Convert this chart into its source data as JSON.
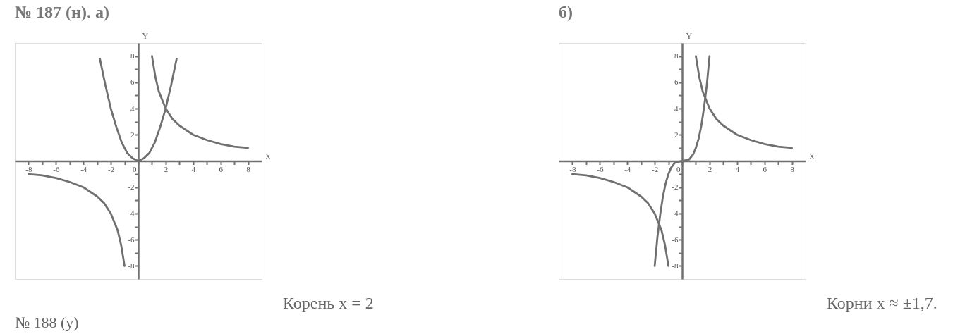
{
  "chart_data": [
    {
      "type": "line",
      "title": "№ 187 (н). а)",
      "xlabel": "X",
      "ylabel": "Y",
      "xlim": [
        -9,
        9
      ],
      "ylim": [
        -9,
        9
      ],
      "xticks": [
        -8,
        {
          "value": -7,
          "label": null
        },
        -6,
        {
          "value": -5,
          "label": null
        },
        -4,
        {
          "value": -3,
          "label": null
        },
        -2,
        {
          "value": -1,
          "label": null
        },
        0,
        {
          "value": 1,
          "label": null
        },
        2,
        {
          "value": 3,
          "label": null
        },
        4,
        {
          "value": 5,
          "label": null
        },
        6,
        {
          "value": 7,
          "label": null
        },
        8
      ],
      "yticks": [
        -8,
        {
          "value": -7,
          "label": null
        },
        -6,
        {
          "value": -5,
          "label": null
        },
        -4,
        {
          "value": -3,
          "label": null
        },
        -2,
        {
          "value": -1,
          "label": null
        },
        {
          "value": 1,
          "label": null
        },
        2,
        {
          "value": 3,
          "label": null
        },
        4,
        {
          "value": 5,
          "label": null
        },
        6,
        {
          "value": 7,
          "label": null
        },
        8
      ],
      "grid": false,
      "marker": "none",
      "line_style": "solid",
      "series": [
        {
          "color": "#707070",
          "x": [
            -2.8,
            -2.4,
            -2,
            -1.6,
            -1.2,
            -0.8,
            -0.4,
            0,
            0.4,
            0.8,
            1.2,
            1.6,
            2,
            2.4,
            2.8
          ],
          "values": [
            7.8,
            5.8,
            4,
            2.6,
            1.4,
            0.6,
            0.2,
            0,
            0.2,
            0.6,
            1.4,
            2.6,
            4,
            5.8,
            7.8
          ]
        },
        {
          "color": "#707070",
          "x": [
            1,
            1.25,
            1.5,
            2,
            2.5,
            3,
            4,
            5,
            6,
            7,
            8
          ],
          "values": [
            8,
            6.4,
            5.3,
            4,
            3.2,
            2.7,
            2,
            1.6,
            1.3,
            1.1,
            1
          ]
        },
        {
          "color": "#707070",
          "x": [
            -8,
            -7,
            -6,
            -5,
            -4,
            -3,
            -2.5,
            -2,
            -1.5,
            -1.25,
            -1
          ],
          "values": [
            -1,
            -1.1,
            -1.3,
            -1.6,
            -2,
            -2.7,
            -3.2,
            -4,
            -5.3,
            -6.4,
            -8
          ]
        }
      ],
      "annotations": [
        "Корень x = 2",
        "№ 188 (у)"
      ]
    },
    {
      "type": "line",
      "title": "б)",
      "xlabel": "X",
      "ylabel": "Y",
      "xlim": [
        -9,
        9
      ],
      "ylim": [
        -9,
        9
      ],
      "xticks": [
        -8,
        {
          "value": -7,
          "label": null
        },
        -6,
        {
          "value": -5,
          "label": null
        },
        -4,
        {
          "value": -3,
          "label": null
        },
        -2,
        {
          "value": -1,
          "label": null
        },
        0,
        {
          "value": 1,
          "label": null
        },
        2,
        {
          "value": 3,
          "label": null
        },
        4,
        {
          "value": 5,
          "label": null
        },
        6,
        {
          "value": 7,
          "label": null
        },
        8
      ],
      "yticks": [
        -8,
        {
          "value": -7,
          "label": null
        },
        -6,
        {
          "value": -5,
          "label": null
        },
        -4,
        {
          "value": -3,
          "label": null
        },
        -2,
        {
          "value": -1,
          "label": null
        },
        {
          "value": 1,
          "label": null
        },
        2,
        {
          "value": 3,
          "label": null
        },
        4,
        {
          "value": 5,
          "label": null
        },
        6,
        {
          "value": 7,
          "label": null
        },
        8
      ],
      "grid": false,
      "marker": "none",
      "line_style": "solid",
      "series": [
        {
          "color": "#707070",
          "x": [
            -2,
            -1.8,
            -1.6,
            -1.4,
            -1.2,
            -1,
            -0.8,
            -0.5,
            0,
            0.5,
            0.8,
            1,
            1.2,
            1.4,
            1.6,
            1.8,
            2
          ],
          "values": [
            -8,
            -5.8,
            -4.1,
            -2.7,
            -1.7,
            -1,
            -0.5,
            -0.1,
            0,
            0.1,
            0.5,
            1,
            1.7,
            2.7,
            4.1,
            5.8,
            8
          ]
        },
        {
          "color": "#707070",
          "x": [
            1,
            1.25,
            1.5,
            2,
            2.5,
            3,
            4,
            5,
            6,
            7,
            8
          ],
          "values": [
            8,
            6.4,
            5.3,
            4,
            3.2,
            2.7,
            2,
            1.6,
            1.3,
            1.1,
            1
          ]
        },
        {
          "color": "#707070",
          "x": [
            -8,
            -7,
            -6,
            -5,
            -4,
            -3,
            -2.5,
            -2,
            -1.5,
            -1.25,
            -1
          ],
          "values": [
            -1,
            -1.1,
            -1.3,
            -1.6,
            -2,
            -2.7,
            -3.2,
            -4,
            -5.3,
            -6.4,
            -8
          ]
        }
      ],
      "annotations": [
        "Корни x ≈ ±1,7."
      ]
    }
  ]
}
